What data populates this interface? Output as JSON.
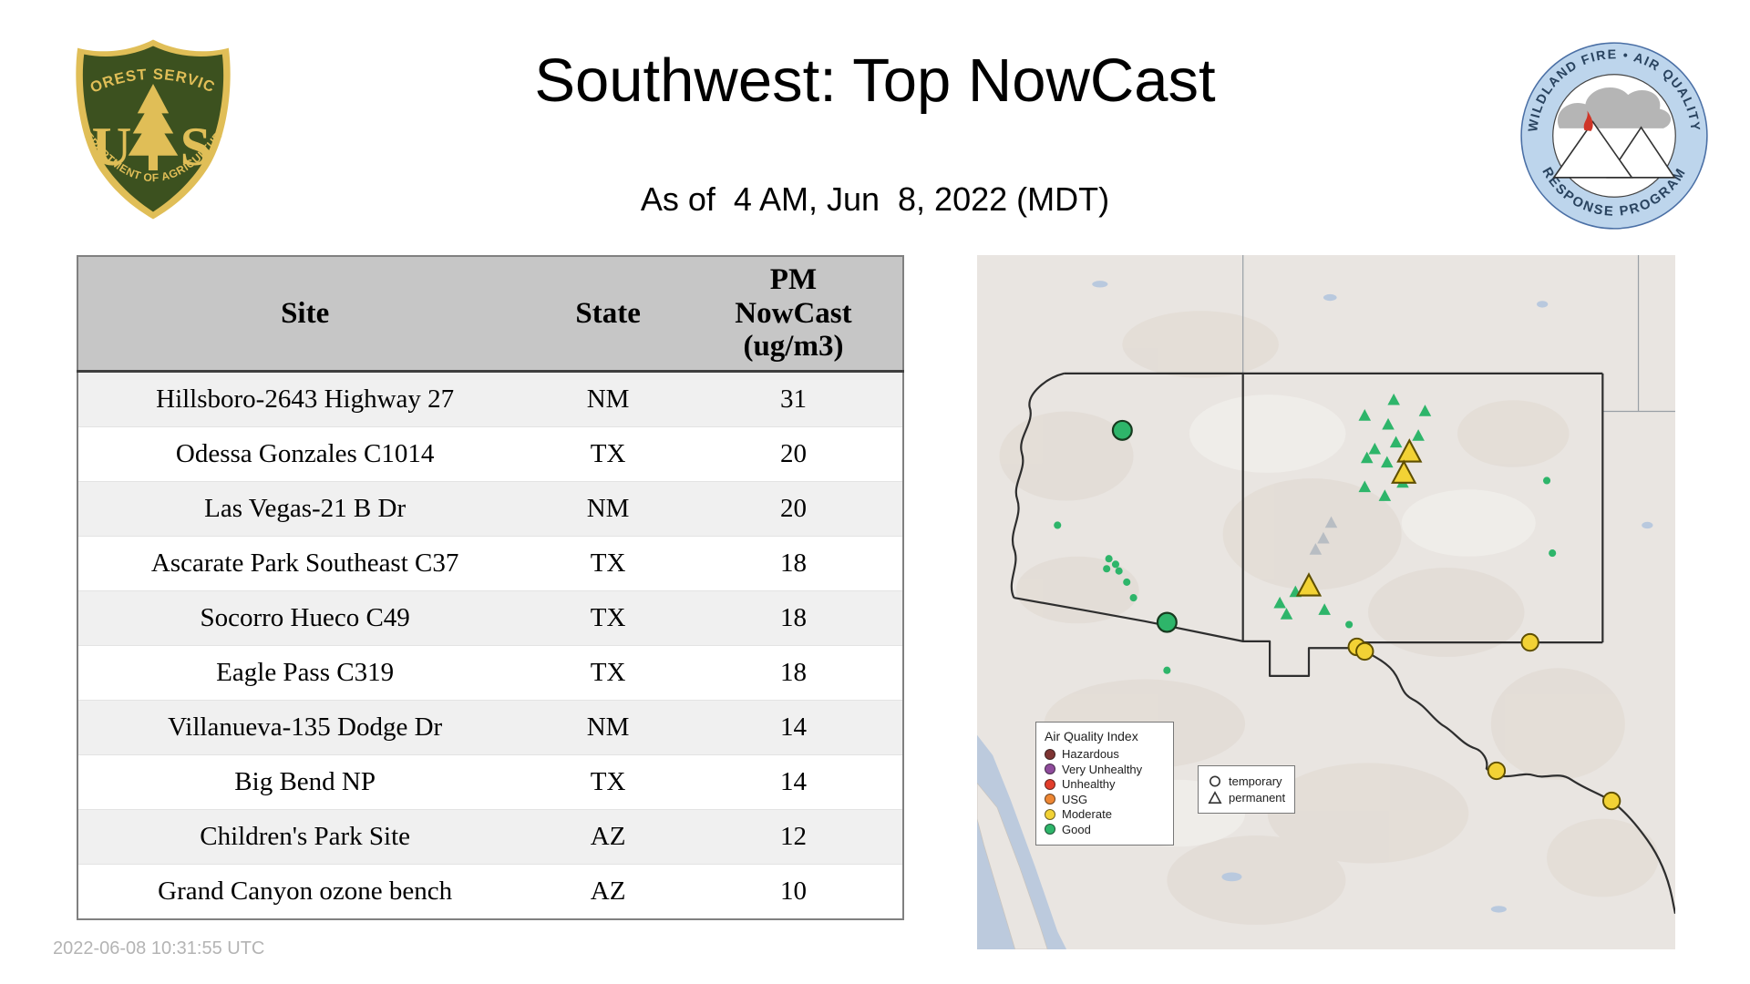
{
  "header": {
    "title": "Southwest: Top NowCast",
    "subtitle": "As of  4 AM, Jun  8, 2022 (MDT)"
  },
  "logos": {
    "usfs": {
      "top_arc": "FOREST SERVICE",
      "bottom_arc": "DEPARTMENT OF AGRICULTURE",
      "mono_left": "U",
      "mono_right": "S"
    },
    "wfaqrp": {
      "top_arc": "WILDLAND FIRE • AIR QUALITY",
      "bottom_arc": "RESPONSE PROGRAM"
    }
  },
  "table": {
    "columns": [
      "Site",
      "State",
      "PM NowCast (ug/m3)"
    ],
    "pm_header_lines": [
      "PM",
      "NowCast",
      "(ug/m3)"
    ],
    "rows": [
      {
        "site": "Hillsboro-2643 Highway 27",
        "state": "NM",
        "value": "31"
      },
      {
        "site": "Odessa Gonzales C1014",
        "state": "TX",
        "value": "20"
      },
      {
        "site": "Las Vegas-21 B Dr",
        "state": "NM",
        "value": "20"
      },
      {
        "site": "Ascarate Park Southeast C37",
        "state": "TX",
        "value": "18"
      },
      {
        "site": "Socorro Hueco C49",
        "state": "TX",
        "value": "18"
      },
      {
        "site": "Eagle Pass C319",
        "state": "TX",
        "value": "18"
      },
      {
        "site": "Villanueva-135 Dodge Dr",
        "state": "NM",
        "value": "14"
      },
      {
        "site": "Big Bend NP",
        "state": "TX",
        "value": "14"
      },
      {
        "site": "Children's Park Site",
        "state": "AZ",
        "value": "12"
      },
      {
        "site": "Grand Canyon ozone bench",
        "state": "AZ",
        "value": "10"
      }
    ]
  },
  "footer": {
    "timestamp": "2022-06-08 10:31:55 UTC"
  },
  "map": {
    "colors": {
      "good": "#2eb56a",
      "moderate": "#f2d235",
      "usg": "#ee8733",
      "unhealthy": "#e23d2b",
      "very_unhealthy": "#8f4b9c",
      "hazardous": "#7e3433",
      "inactive_gray": "#b8bdc3"
    },
    "legend": {
      "title": "Air Quality Index",
      "items": [
        {
          "label": "Hazardous",
          "color": "#7e3433"
        },
        {
          "label": "Very Unhealthy",
          "color": "#8f4b9c"
        },
        {
          "label": "Unhealthy",
          "color": "#e23d2b"
        },
        {
          "label": "USG",
          "color": "#ee8733"
        },
        {
          "label": "Moderate",
          "color": "#f2d235"
        },
        {
          "label": "Good",
          "color": "#2eb56a"
        }
      ]
    },
    "type_legend": {
      "items": [
        {
          "label": "temporary",
          "shape": "circle"
        },
        {
          "label": "permanent",
          "shape": "triangle"
        }
      ]
    },
    "markers": {
      "good_large_circles": [
        [
          130,
          157
        ],
        [
          170,
          329
        ]
      ],
      "moderate_circles": [
        [
          340,
          351
        ],
        [
          347,
          355
        ],
        [
          495,
          347
        ],
        [
          465,
          462
        ],
        [
          568,
          489
        ]
      ],
      "good_dots": [
        [
          72,
          242
        ],
        [
          118,
          272
        ],
        [
          124,
          277
        ],
        [
          116,
          281
        ],
        [
          127,
          283
        ],
        [
          134,
          293
        ],
        [
          140,
          307
        ],
        [
          170,
          372
        ],
        [
          510,
          202
        ],
        [
          515,
          267
        ],
        [
          333,
          331
        ]
      ],
      "good_triangles": [
        [
          347,
          144
        ],
        [
          368,
          152
        ],
        [
          375,
          168
        ],
        [
          356,
          174
        ],
        [
          367,
          186
        ],
        [
          349,
          182
        ],
        [
          401,
          140
        ],
        [
          381,
          204
        ],
        [
          347,
          208
        ],
        [
          365,
          216
        ],
        [
          373,
          130
        ],
        [
          395,
          162
        ],
        [
          271,
          312
        ],
        [
          285,
          302
        ],
        [
          277,
          322
        ],
        [
          311,
          318
        ]
      ],
      "gray_triangles": [
        [
          310,
          254
        ],
        [
          317,
          240
        ],
        [
          303,
          264
        ]
      ],
      "moderate_triangles_large": [
        [
          387,
          177
        ],
        [
          382,
          196
        ],
        [
          297,
          297
        ]
      ]
    }
  }
}
